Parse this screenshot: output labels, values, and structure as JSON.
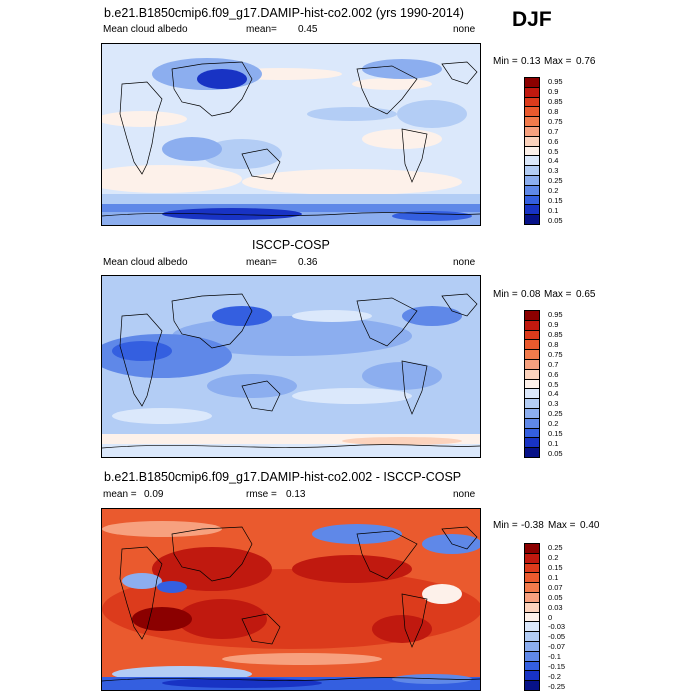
{
  "season": "DJF",
  "panels": [
    {
      "id": "model",
      "title": "b.e21.B1850cmip6.f09_g17.DAMIP-hist-co2.002 (yrs 1990-2014)",
      "left_label": "Mean cloud albedo",
      "stat_label": "mean=",
      "stat_value": "0.45",
      "right_label": "none",
      "min_label": "Min =",
      "min_value": "0.13",
      "max_label": "Max =",
      "max_value": "0.76",
      "colorbar": [
        "0.95",
        "0.9",
        "0.85",
        "0.8",
        "0.75",
        "0.7",
        "0.6",
        "0.5",
        "0.4",
        "0.3",
        "0.25",
        "0.2",
        "0.15",
        "0.1",
        "0.05"
      ]
    },
    {
      "id": "obs",
      "title": "ISCCP-COSP",
      "left_label": "Mean cloud albedo",
      "stat_label": "mean=",
      "stat_value": "0.36",
      "right_label": "none",
      "min_label": "Min =",
      "min_value": "0.08",
      "max_label": "Max =",
      "max_value": "0.65",
      "colorbar": [
        "0.95",
        "0.9",
        "0.85",
        "0.8",
        "0.75",
        "0.7",
        "0.6",
        "0.5",
        "0.4",
        "0.3",
        "0.25",
        "0.2",
        "0.15",
        "0.1",
        "0.05"
      ]
    },
    {
      "id": "diff",
      "title": "b.e21.B1850cmip6.f09_g17.DAMIP-hist-co2.002 - ISCCP-COSP",
      "left_label": "mean =",
      "left_value": "0.09",
      "stat_label": "rmse =",
      "stat_value": "0.13",
      "right_label": "none",
      "min_label": "Min =",
      "min_value": "-0.38",
      "max_label": "Max =",
      "max_value": "0.40",
      "colorbar": [
        "0.25",
        "0.2",
        "0.15",
        "0.1",
        "0.07",
        "0.05",
        "0.03",
        "0",
        "-0.03",
        "-0.05",
        "-0.07",
        "-0.1",
        "-0.15",
        "-0.2",
        "-0.25"
      ]
    }
  ],
  "colors": {
    "bins": [
      "#8b0000",
      "#c0190f",
      "#dc3b1c",
      "#ea5a2e",
      "#f27b4c",
      "#f7a17f",
      "#fcd3bd",
      "#fdf1ea",
      "#dbe8fb",
      "#b3cdf5",
      "#8caeef",
      "#5f88e8",
      "#345fe0",
      "#1833c4",
      "#071288"
    ],
    "land": "#000000"
  }
}
